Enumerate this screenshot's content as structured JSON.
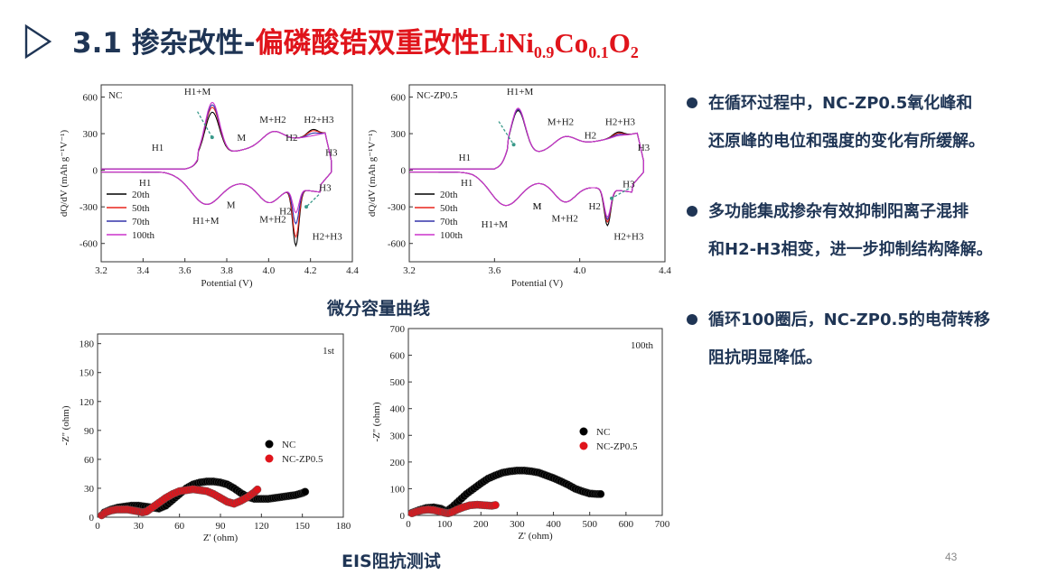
{
  "header": {
    "number": "3.1 ",
    "title_a": "掺杂改性-",
    "title_b": "偏磷酸锆双重改性",
    "chem_parts": [
      "LiNi",
      "0.9",
      "Co",
      "0.1",
      "O",
      "2"
    ]
  },
  "captions": {
    "dqdv": "微分容量曲线",
    "eis": "EIS阻抗测试"
  },
  "bullets": [
    {
      "line1": "在循环过程中，NC-ZP0.5氧化峰和",
      "line2": "还原峰的电位和强度的变化有所缓解。"
    },
    {
      "line1": "多功能集成掺杂有效抑制阳离子混排",
      "line2": "和H2-H3相变，进一步抑制结构降解。"
    },
    {
      "line1": "循环100圈后，NC-ZP0.5的电荷转移",
      "line2": "阻抗明显降低。"
    }
  ],
  "page_number": "43",
  "colors": {
    "title_navy": "#1f3555",
    "title_red": "#e0141b",
    "c20": "#000000",
    "c50": "#e8231b",
    "c70": "#3333aa",
    "c100": "#cc33cc",
    "nc": "#000000",
    "zp": "#e0141b",
    "arrow": "#3a9a8a"
  },
  "chart_data": [
    {
      "type": "line",
      "panel_label": "NC",
      "xlabel": "Potential (V)",
      "ylabel": "dQ/dV (mAh g⁻¹V⁻¹)",
      "xlim": [
        3.2,
        4.4
      ],
      "ylim": [
        -750,
        700
      ],
      "xticks": [
        "3.2",
        "3.4",
        "3.6",
        "3.8",
        "4.0",
        "4.2",
        "4.4"
      ],
      "yticks": [
        "600",
        "300",
        "0",
        "-300",
        "-600"
      ],
      "series": [
        {
          "name": "20th"
        },
        {
          "name": "50th"
        },
        {
          "name": "70th"
        },
        {
          "name": "100th"
        }
      ],
      "oxidation_peaks": [
        {
          "label": "H1+M",
          "x": 3.73,
          "y": [
            560,
            600,
            620,
            640
          ]
        },
        {
          "label": "M+H2",
          "x": 4.02,
          "y": 330
        },
        {
          "label": "H2+H3",
          "x": 4.21,
          "y": [
            300,
            290,
            270,
            250
          ]
        }
      ],
      "reduction_peaks": [
        {
          "label": "H1+M",
          "x": 3.7,
          "y": -340
        },
        {
          "label": "M+H2",
          "x": 4.0,
          "y": -290
        },
        {
          "label": "H2+H3",
          "x": 4.13,
          "y": [
            -630,
            -560,
            -450,
            -360
          ]
        }
      ],
      "annotations": [
        "H1",
        "H1+M",
        "M",
        "M+H2",
        "H2",
        "H2+H3",
        "H3",
        "H1",
        "H1+M",
        "M",
        "M+H2",
        "H2",
        "H3",
        "H2+H3"
      ]
    },
    {
      "type": "line",
      "panel_label": "NC-ZP0.5",
      "xlabel": "Potential (V)",
      "ylabel": "dQ/dV (mAh g⁻¹V⁻¹)",
      "xlim": [
        3.2,
        4.4
      ],
      "ylim": [
        -750,
        700
      ],
      "xticks": [
        "3.2",
        "3.6",
        "4.0",
        "4.4"
      ],
      "yticks": [
        "600",
        "300",
        "0",
        "-300",
        "-600"
      ],
      "series": [
        {
          "name": "20th"
        },
        {
          "name": "50th"
        },
        {
          "name": "70th"
        },
        {
          "name": "100th"
        }
      ],
      "oxidation_peaks": [
        {
          "label": "H1+M",
          "x": 3.71,
          "y": [
            580,
            590,
            590,
            600
          ]
        },
        {
          "label": "M+H2",
          "x": 3.93,
          "y": 320
        },
        {
          "label": "H2+H3",
          "x": 4.18,
          "y": [
            290,
            280,
            270,
            260
          ]
        }
      ],
      "reduction_peaks": [
        {
          "label": "H1+M",
          "x": 3.65,
          "y": -360
        },
        {
          "label": "M+H2",
          "x": 3.93,
          "y": -300
        },
        {
          "label": "H2+H3",
          "x": 4.13,
          "y": [
            -470,
            -440,
            -420,
            -400
          ]
        }
      ],
      "annotations": [
        "H1",
        "H1+M",
        "M",
        "M+H2",
        "H2",
        "H2+H3",
        "H3",
        "H1",
        "H1+M",
        "M",
        "M+H2",
        "H2",
        "H3",
        "H2+H3"
      ]
    },
    {
      "type": "scatter",
      "panel_label": "1st",
      "xlabel": "Z' (ohm)",
      "ylabel": "-Z'' (ohm)",
      "xlim": [
        0,
        180
      ],
      "ylim": [
        0,
        190
      ],
      "xticks": [
        "0",
        "30",
        "60",
        "90",
        "120",
        "150",
        "180"
      ],
      "yticks": [
        "0",
        "30",
        "60",
        "90",
        "120",
        "150",
        "180"
      ],
      "series": [
        {
          "name": "NC",
          "x": [
            5,
            10,
            15,
            20,
            25,
            30,
            35,
            40,
            45,
            50,
            55,
            60,
            65,
            70,
            75,
            80,
            85,
            90,
            95,
            100,
            105,
            110,
            115,
            120,
            125,
            130,
            135,
            140,
            145,
            150,
            153
          ],
          "y": [
            5,
            8,
            10,
            11,
            12,
            12,
            11,
            10,
            9,
            12,
            18,
            24,
            30,
            34,
            36,
            37,
            37,
            36,
            34,
            30,
            25,
            21,
            19,
            19,
            19,
            20,
            21,
            22,
            23,
            25,
            27
          ]
        },
        {
          "name": "NC-ZP0.5",
          "x": [
            3,
            6,
            10,
            14,
            18,
            22,
            26,
            30,
            33,
            36,
            40,
            45,
            50,
            55,
            60,
            65,
            70,
            75,
            80,
            85,
            90,
            95,
            100,
            105,
            110,
            115,
            118
          ],
          "y": [
            2,
            5,
            7,
            8,
            8,
            8,
            7,
            6,
            5,
            6,
            10,
            15,
            20,
            24,
            27,
            28,
            29,
            28,
            27,
            24,
            20,
            16,
            14,
            17,
            21,
            26,
            30
          ]
        }
      ]
    },
    {
      "type": "scatter",
      "panel_label": "100th",
      "xlabel": "Z' (ohm)",
      "ylabel": "-Z'' (ohm)",
      "xlim": [
        0,
        700
      ],
      "ylim": [
        0,
        700
      ],
      "xticks": [
        "0",
        "100",
        "200",
        "300",
        "400",
        "500",
        "600",
        "700"
      ],
      "yticks": [
        "0",
        "100",
        "200",
        "300",
        "400",
        "500",
        "600",
        "700"
      ],
      "series": [
        {
          "name": "NC",
          "x": [
            10,
            30,
            50,
            70,
            90,
            105,
            120,
            140,
            160,
            180,
            200,
            220,
            240,
            260,
            280,
            300,
            320,
            340,
            360,
            380,
            400,
            420,
            440,
            460,
            480,
            500,
            520,
            535
          ],
          "y": [
            10,
            20,
            28,
            30,
            25,
            15,
            30,
            55,
            80,
            100,
            120,
            138,
            150,
            160,
            165,
            168,
            168,
            165,
            160,
            150,
            140,
            128,
            115,
            100,
            90,
            82,
            80,
            80
          ]
        },
        {
          "name": "NC-ZP0.5",
          "x": [
            10,
            25,
            40,
            55,
            70,
            85,
            100,
            110,
            120,
            135,
            150,
            170,
            190,
            210,
            230,
            245
          ],
          "y": [
            8,
            15,
            20,
            22,
            20,
            15,
            10,
            8,
            12,
            22,
            30,
            38,
            40,
            38,
            36,
            40
          ]
        }
      ]
    }
  ]
}
